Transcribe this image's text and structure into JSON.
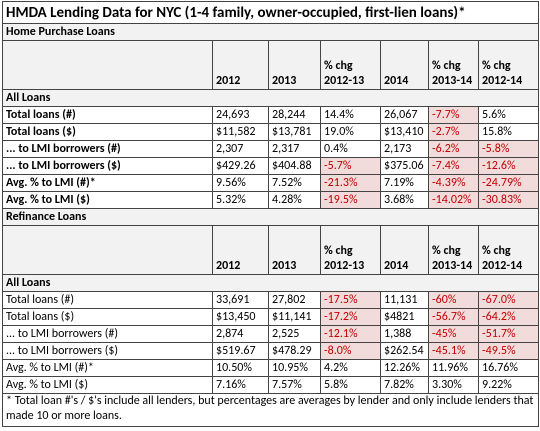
{
  "title": "HMDA Lending Data for NYC (1-4 family, owner-occupied, first-lien loans)*",
  "sections": [
    {
      "name": "Home Purchase Loans",
      "header": [
        "2012",
        "2013",
        "% chg 2012-13",
        "2014",
        "% chg 2013-14",
        "% chg 2012-14"
      ],
      "group": "All Loans",
      "rows": [
        {
          "label": "Total loans (#)",
          "cells": [
            "24,693",
            "28,244",
            "14.4%",
            "26,067",
            "-7.7%",
            "5.6%"
          ]
        },
        {
          "label": "Total loans ($)",
          "cells": [
            "$11,582",
            "$13,781",
            "19.0%",
            "$13,410",
            "-2.7%",
            "15.8%"
          ]
        },
        {
          "label": "... to LMI borrowers (#)",
          "cells": [
            "2,307",
            "2,317",
            "0.4%",
            "2,173",
            "-6.2%",
            "-5.8%"
          ]
        },
        {
          "label": "... to LMI borrowers ($)",
          "cells": [
            "$429.26",
            "$404.88",
            "-5.7%",
            "$375.06",
            "-7.4%",
            "-12.6%"
          ]
        },
        {
          "label": "Avg. % to LMI (#)*",
          "cells": [
            "9.56%",
            "7.52%",
            "-21.3%",
            "7.19%",
            "-4.39%",
            "-24.79%"
          ]
        },
        {
          "label": "Avg. % to LMI ($)",
          "cells": [
            "5.32%",
            "4.28%",
            "-19.5%",
            "3.68%",
            "-14.02%",
            "-30.83%"
          ]
        }
      ]
    },
    {
      "name": "Refinance Loans",
      "header": [
        "2012",
        "2013",
        "% chg 2012-13",
        "2014",
        "% chg 2013-14",
        "% chg 2012-14"
      ],
      "group": "All Loans",
      "rows": [
        {
          "label": "Total loans (#)",
          "cells": [
            "33,691",
            "27,802",
            "-17.5%",
            "11,131",
            "-60%",
            "-67.0%"
          ]
        },
        {
          "label": "Total loans ($)",
          "cells": [
            "$13,450",
            "$11,141",
            "-17.2%",
            "$4821",
            "-56.7%",
            "-64.2%"
          ]
        },
        {
          "label": "... to LMI borrowers (#)",
          "cells": [
            "2,874",
            "2,525",
            "-12.1%",
            "1,388",
            "-45%",
            "-51.7%"
          ]
        },
        {
          "label": "... to LMI borrowers ($)",
          "cells": [
            "$519.67",
            "$478.29",
            "-8.0%",
            "$262.54",
            "-45.1%",
            "-49.5%"
          ]
        },
        {
          "label": "Avg. % to LMI (#)*",
          "cells": [
            "10.50%",
            "10.95%",
            "4.2%",
            "12.26%",
            "11.96%",
            "16.76%"
          ]
        },
        {
          "label": "Avg. % to LMI ($)",
          "cells": [
            "7.16%",
            "7.57%",
            "5.8%",
            "7.82%",
            "3.30%",
            "9.22%"
          ]
        }
      ]
    }
  ],
  "footnote": "* Total loan #'s / $'s include all lenders, but percentages are averages by lender and only include lenders that made 10 or more loans."
}
